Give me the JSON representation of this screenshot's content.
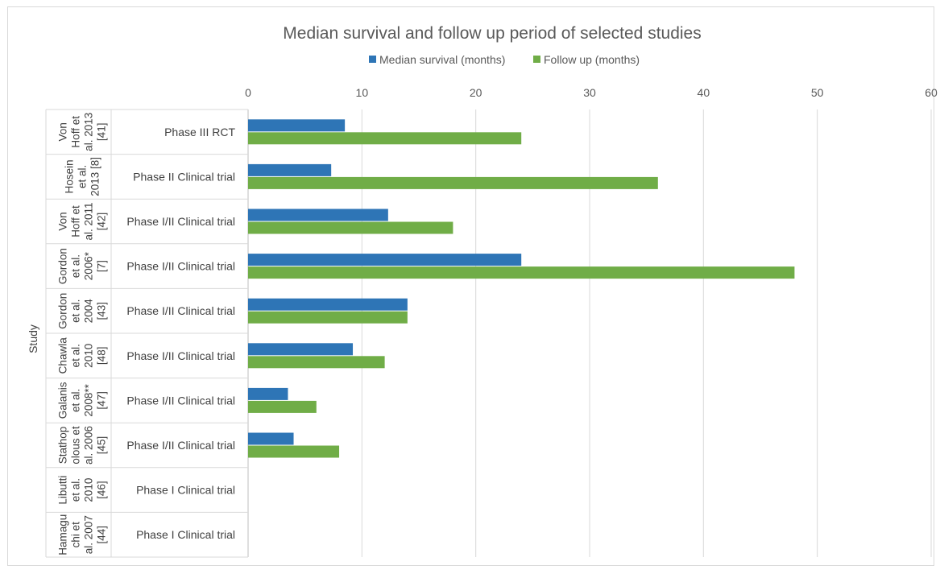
{
  "chart_data": {
    "type": "bar",
    "orientation": "horizontal",
    "title": "Median survival and follow up period of selected studies",
    "ylabel": "Study",
    "xlim": [
      0,
      60
    ],
    "xticks": [
      0,
      10,
      20,
      30,
      40,
      50,
      60
    ],
    "grid": true,
    "legend_position": "top",
    "series": [
      {
        "name": "Median survival (months)",
        "color": "#2e75b6",
        "values": [
          8.5,
          7.3,
          12.3,
          24,
          14,
          9.2,
          3.5,
          4,
          null,
          null
        ]
      },
      {
        "name": "Follow up (months)",
        "color": "#70ad47",
        "values": [
          24,
          36,
          18,
          48,
          14,
          12,
          6,
          8,
          null,
          null
        ]
      }
    ],
    "categories": [
      {
        "study": [
          "Von",
          "Hoff et",
          "al. 2013",
          "[41]"
        ],
        "phase": "Phase III RCT"
      },
      {
        "study": [
          "Hosein",
          "et al.",
          "2013 [8]"
        ],
        "phase": "Phase II Clinical trial"
      },
      {
        "study": [
          "Von",
          "Hoff et",
          "al. 2011",
          "[42]"
        ],
        "phase": "Phase I/II Clinical trial"
      },
      {
        "study": [
          "Gordon",
          "et al.",
          "2006*",
          "[7]"
        ],
        "phase": "Phase I/II Clinical trial"
      },
      {
        "study": [
          "Gordon",
          "et al.",
          "2004",
          "[43]"
        ],
        "phase": "Phase I/II Clinical trial"
      },
      {
        "study": [
          "Chawla",
          "et al.",
          "2010",
          "[48]"
        ],
        "phase": "Phase I/II Clinical trial"
      },
      {
        "study": [
          "Galanis",
          "et al.",
          "2008**",
          "[47]"
        ],
        "phase": "Phase I/II Clinical trial"
      },
      {
        "study": [
          "Stathop",
          "olous et",
          "al. 2006",
          "[45]"
        ],
        "phase": "Phase I/II Clinical trial"
      },
      {
        "study": [
          "Libutti",
          "et al.",
          "2010",
          "[46]"
        ],
        "phase": "Phase I Clinical trial"
      },
      {
        "study": [
          "Hamagu",
          "chi et",
          "al. 2007",
          "[44]"
        ],
        "phase": "Phase I Clinical trial"
      }
    ]
  }
}
